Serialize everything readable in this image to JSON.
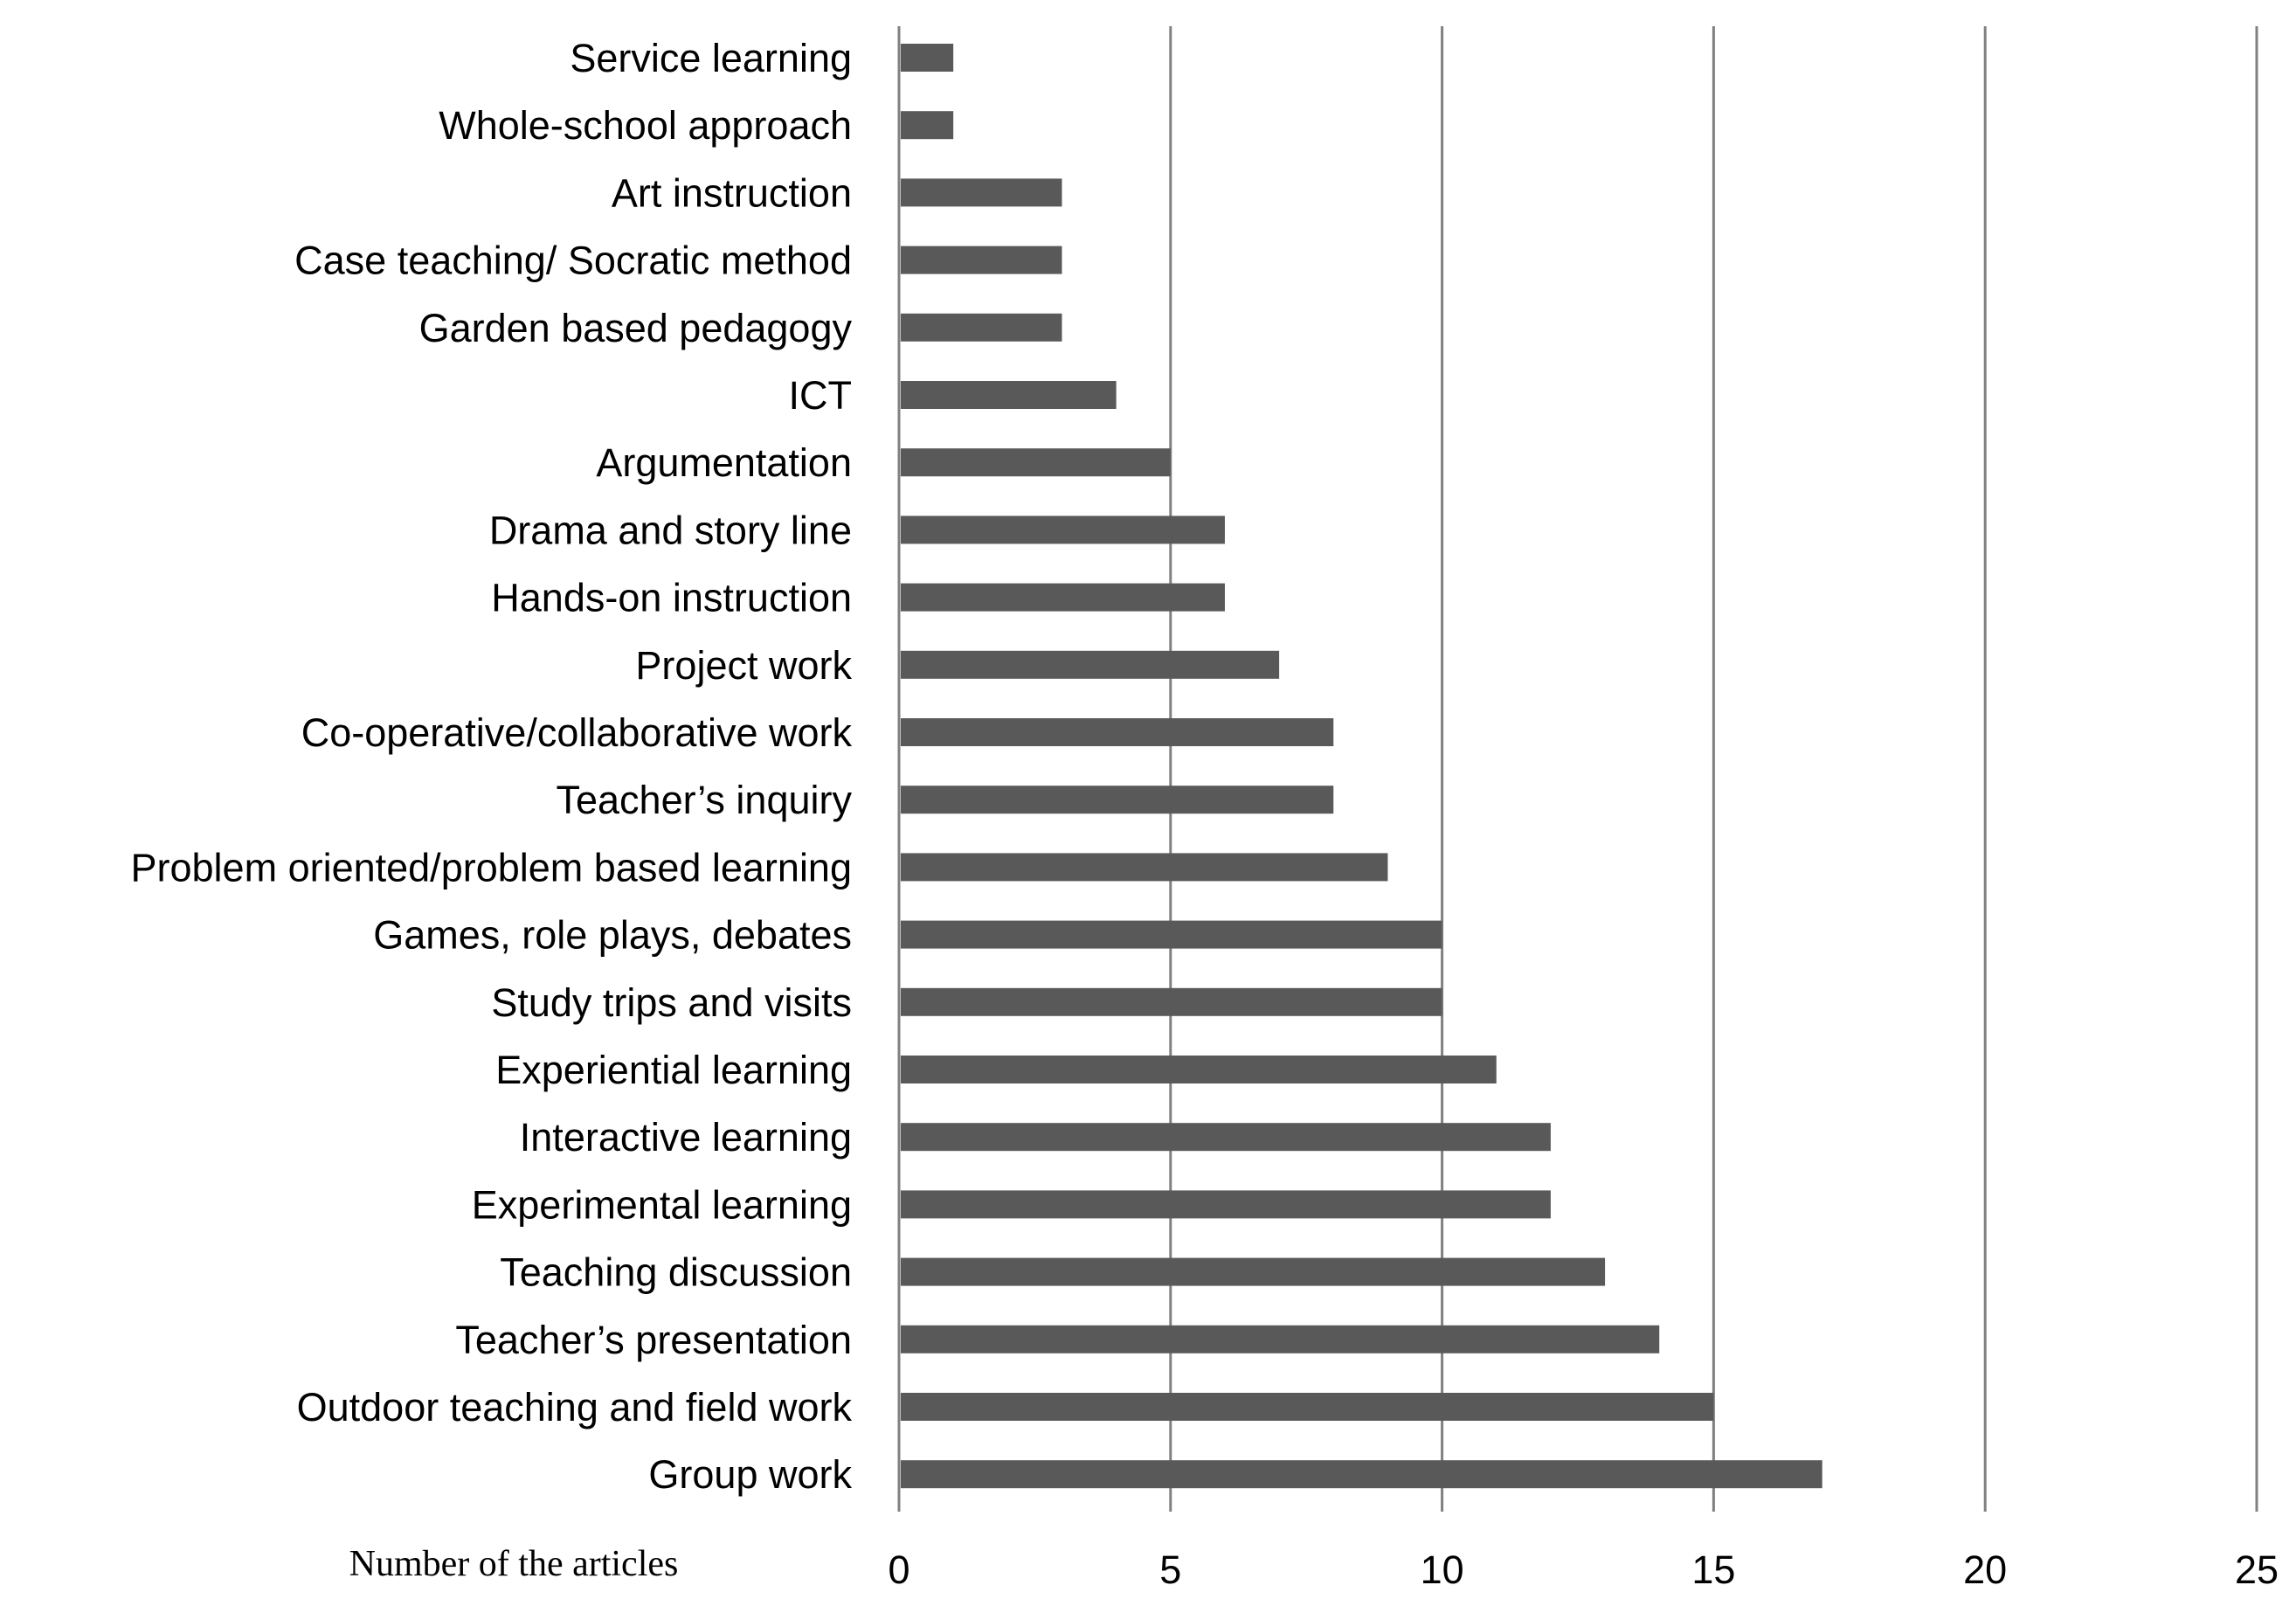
{
  "chart_data": {
    "type": "bar",
    "orientation": "horizontal",
    "categories": [
      "Service learning",
      "Whole-school approach",
      "Art instruction",
      "Case teaching/ Socratic method",
      "Garden based pedagogy",
      "ICT",
      "Argumentation",
      "Drama and story line",
      "Hands-on instruction",
      "Project work",
      "Co-operative/collaborative work",
      "Teacher’s inquiry",
      "Problem oriented/problem based learning",
      "Games, role plays, debates",
      "Study trips and visits",
      "Experiential learning",
      "Interactive learning",
      "Experimental learning",
      "Teaching discussion",
      "Teacher’s presentation",
      "Outdoor teaching and field work",
      "Group work"
    ],
    "values": [
      1,
      1,
      3,
      3,
      3,
      4,
      5,
      6,
      6,
      7,
      8,
      8,
      9,
      10,
      10,
      11,
      12,
      12,
      13,
      14,
      15,
      17
    ],
    "xlabel": "Number of the articles",
    "xlim": [
      0,
      25
    ],
    "xticks": [
      0,
      5,
      10,
      15,
      20,
      25
    ],
    "grid": true,
    "legend": "none",
    "bar_color": "#595959",
    "grid_color": "#808080"
  }
}
